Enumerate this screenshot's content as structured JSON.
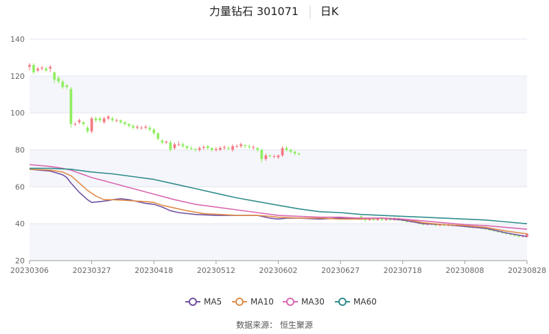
{
  "header": {
    "title_name": "力量钻石 301071",
    "title_period": "日K"
  },
  "footer": {
    "source": "数据来源： 恒生聚源"
  },
  "chart_data": {
    "type": "candlestick",
    "y_range": [
      20,
      140
    ],
    "y_ticks": [
      20,
      40,
      60,
      80,
      100,
      120,
      140
    ],
    "x_tick_labels": [
      "20230306",
      "20230327",
      "20230418",
      "20230512",
      "20230602",
      "20230627",
      "20230718",
      "20230808",
      "20230828"
    ],
    "x_tick_index": [
      0,
      15,
      30,
      45,
      60,
      75,
      90,
      105,
      120
    ],
    "grid": true,
    "legend_position": "bottom",
    "colors": {
      "up": "#f47983",
      "down": "#90ee61",
      "MA5": "#6e4fa1",
      "MA10": "#e08b46",
      "MA30": "#d966b0",
      "MA60": "#2e8b8b"
    },
    "candles": [
      [
        0,
        125,
        126,
        127,
        123
      ],
      [
        1,
        126,
        122,
        127,
        121
      ],
      [
        2,
        123,
        124,
        125,
        122
      ],
      [
        3,
        124,
        124.5,
        125.5,
        123
      ],
      [
        4,
        124,
        123,
        125,
        122
      ],
      [
        5,
        124,
        125,
        126,
        122
      ],
      [
        6,
        122,
        118,
        122.5,
        116
      ],
      [
        7,
        119,
        117,
        120,
        116
      ],
      [
        8,
        117,
        114,
        118,
        113
      ],
      [
        9,
        115,
        114,
        115.5,
        113
      ],
      [
        10,
        113,
        94,
        114,
        92
      ],
      [
        11,
        94,
        94,
        95,
        93
      ],
      [
        12,
        95,
        96,
        97,
        94
      ],
      [
        13,
        95,
        94,
        95.5,
        93
      ],
      [
        14,
        92,
        90,
        93,
        89
      ],
      [
        15,
        90,
        97,
        98,
        89
      ],
      [
        16,
        97,
        96,
        98,
        95
      ],
      [
        17,
        97,
        96,
        98,
        95
      ],
      [
        18,
        95,
        97,
        98,
        94
      ],
      [
        19,
        97,
        98,
        99,
        96
      ],
      [
        20,
        97,
        96,
        98,
        95
      ],
      [
        21,
        96,
        96,
        97,
        95
      ],
      [
        22,
        96,
        95,
        96.5,
        94
      ],
      [
        23,
        95,
        94,
        95.5,
        93
      ],
      [
        24,
        94,
        93,
        94.5,
        92
      ],
      [
        25,
        93,
        92,
        94,
        91
      ],
      [
        26,
        92,
        92.5,
        93.5,
        91
      ],
      [
        27,
        92,
        92,
        93,
        91
      ],
      [
        28,
        92,
        92.5,
        93.5,
        91
      ],
      [
        29,
        92,
        91,
        93,
        90
      ],
      [
        30,
        91,
        89,
        92,
        88
      ],
      [
        31,
        89,
        86,
        89.5,
        85
      ],
      [
        32,
        85,
        84,
        86,
        83
      ],
      [
        33,
        84,
        84.5,
        85,
        83
      ],
      [
        34,
        84,
        80,
        85,
        79
      ],
      [
        35,
        81,
        83,
        84,
        80
      ],
      [
        36,
        83,
        83,
        84.5,
        82
      ],
      [
        37,
        83,
        82,
        84,
        81
      ],
      [
        38,
        82,
        81,
        82.5,
        80
      ],
      [
        39,
        81,
        80.5,
        82,
        80
      ],
      [
        40,
        80.5,
        80,
        81,
        79
      ],
      [
        41,
        80,
        81,
        82,
        79
      ],
      [
        42,
        81,
        81.5,
        82.5,
        80
      ],
      [
        43,
        82,
        81,
        82.5,
        80
      ],
      [
        44,
        81,
        80,
        81.5,
        79
      ],
      [
        45,
        80,
        80.5,
        81.5,
        79
      ],
      [
        46,
        80,
        81,
        82,
        79.5
      ],
      [
        47,
        81,
        81.5,
        82.5,
        80
      ],
      [
        48,
        81,
        80.5,
        82,
        80
      ],
      [
        49,
        80,
        82,
        83,
        79
      ],
      [
        50,
        82,
        82,
        83,
        81
      ],
      [
        51,
        82,
        83,
        84,
        81
      ],
      [
        52,
        82.5,
        82,
        83,
        81
      ],
      [
        53,
        82,
        81.5,
        83,
        80.5
      ],
      [
        54,
        81,
        81.5,
        82.5,
        80
      ],
      [
        55,
        81,
        80,
        81.5,
        79
      ],
      [
        56,
        80,
        75,
        80.5,
        73
      ],
      [
        57,
        75,
        77,
        78,
        74
      ],
      [
        58,
        77,
        76.5,
        77.5,
        76
      ],
      [
        59,
        76.5,
        76.5,
        77.5,
        75.5
      ],
      [
        60,
        76,
        77,
        77.5,
        75
      ],
      [
        61,
        77,
        81,
        82,
        76
      ],
      [
        62,
        81,
        80,
        82,
        79
      ],
      [
        63,
        80,
        79,
        80.5,
        78
      ],
      [
        64,
        79,
        78,
        79.5,
        77
      ],
      [
        65,
        78,
        77.5,
        78.5,
        77
      ],
      [
        80,
        44,
        43,
        44.5,
        42
      ],
      [
        81,
        43,
        42,
        43.5,
        41
      ],
      [
        82,
        42,
        43,
        43.5,
        41.5
      ],
      [
        83,
        43,
        42,
        43.5,
        41.5
      ],
      [
        84,
        42,
        43,
        43.5,
        41.5
      ],
      [
        85,
        43,
        42,
        43.5,
        41.5
      ],
      [
        86,
        42,
        43,
        43.5,
        41.5
      ],
      [
        87,
        43,
        42,
        43.5,
        41.5
      ],
      [
        88,
        42,
        43,
        43.5,
        41.5
      ],
      [
        89,
        43,
        42,
        43.5,
        41.5
      ],
      [
        90,
        42,
        41.5,
        42.5,
        41
      ],
      [
        91,
        41.5,
        41,
        42,
        40.5
      ],
      [
        92,
        41,
        41.5,
        42,
        40.5
      ],
      [
        93,
        41.5,
        41,
        42,
        40.5
      ],
      [
        94,
        41,
        40,
        41.5,
        39.5
      ],
      [
        95,
        40,
        39.5,
        40.5,
        39
      ],
      [
        96,
        39.5,
        40,
        40.5,
        39
      ],
      [
        97,
        40,
        39.5,
        40.5,
        39
      ],
      [
        98,
        39.5,
        39,
        40,
        38.5
      ],
      [
        99,
        39,
        39.5,
        40,
        38.5
      ],
      [
        100,
        39.5,
        39,
        40,
        38.5
      ],
      [
        101,
        39,
        39.5,
        40,
        38.5
      ],
      [
        102,
        39.5,
        39,
        40,
        38.5
      ],
      [
        103,
        39,
        39.5,
        40,
        38.5
      ],
      [
        104,
        39.5,
        39,
        40,
        38.5
      ],
      [
        105,
        39,
        38.5,
        39.5,
        38
      ],
      [
        106,
        38.5,
        38,
        39,
        37.5
      ],
      [
        107,
        38,
        38.5,
        39,
        37.5
      ],
      [
        108,
        38.5,
        38,
        39,
        37.5
      ],
      [
        109,
        38,
        37.5,
        38.5,
        37
      ],
      [
        110,
        37.5,
        37,
        38,
        36.5
      ],
      [
        111,
        37,
        36.5,
        37.5,
        36
      ],
      [
        112,
        36.5,
        36,
        37,
        35.5
      ],
      [
        113,
        36,
        35.5,
        36.5,
        35
      ],
      [
        114,
        35.5,
        35,
        36,
        34.5
      ],
      [
        115,
        35,
        34.5,
        35.5,
        34
      ],
      [
        116,
        34.5,
        34,
        35,
        33.5
      ],
      [
        117,
        34,
        33.5,
        34.5,
        33
      ],
      [
        118,
        33.5,
        33,
        34,
        32.5
      ],
      [
        119,
        33,
        33.5,
        34,
        32.5
      ],
      [
        120,
        33,
        34.5,
        35,
        32.5
      ]
    ],
    "series": [
      {
        "name": "MA5",
        "points": [
          [
            0,
            69.5
          ],
          [
            5,
            68.5
          ],
          [
            8,
            66.5
          ],
          [
            9,
            65
          ],
          [
            10,
            62
          ],
          [
            12,
            57
          ],
          [
            14,
            53
          ],
          [
            15,
            51.5
          ],
          [
            17,
            52
          ],
          [
            19,
            52.5
          ],
          [
            20,
            53
          ],
          [
            22,
            53.5
          ],
          [
            24,
            53
          ],
          [
            26,
            52
          ],
          [
            28,
            51
          ],
          [
            30,
            50.5
          ],
          [
            32,
            49
          ],
          [
            34,
            47
          ],
          [
            36,
            46
          ],
          [
            40,
            45
          ],
          [
            45,
            44.5
          ],
          [
            50,
            44.5
          ],
          [
            55,
            44.5
          ],
          [
            58,
            43
          ],
          [
            60,
            42.5
          ],
          [
            62,
            43
          ],
          [
            65,
            43
          ],
          [
            70,
            42.5
          ],
          [
            75,
            43
          ],
          [
            80,
            42.5
          ],
          [
            85,
            43
          ],
          [
            90,
            42
          ],
          [
            95,
            40
          ],
          [
            100,
            39.5
          ],
          [
            105,
            38.5
          ],
          [
            110,
            37.5
          ],
          [
            115,
            35
          ],
          [
            120,
            33
          ]
        ]
      },
      {
        "name": "MA10",
        "points": [
          [
            0,
            69.5
          ],
          [
            5,
            69
          ],
          [
            8,
            68
          ],
          [
            10,
            66
          ],
          [
            12,
            62
          ],
          [
            14,
            58
          ],
          [
            16,
            55
          ],
          [
            18,
            53
          ],
          [
            20,
            53
          ],
          [
            24,
            52.5
          ],
          [
            28,
            52
          ],
          [
            30,
            51.5
          ],
          [
            32,
            50
          ],
          [
            35,
            48.5
          ],
          [
            38,
            47
          ],
          [
            42,
            45.5
          ],
          [
            46,
            45
          ],
          [
            50,
            44.5
          ],
          [
            55,
            44.5
          ],
          [
            58,
            44
          ],
          [
            60,
            43.5
          ],
          [
            65,
            43
          ],
          [
            70,
            43
          ],
          [
            75,
            42.5
          ],
          [
            80,
            42.5
          ],
          [
            85,
            43
          ],
          [
            90,
            42.5
          ],
          [
            95,
            40.5
          ],
          [
            100,
            39.5
          ],
          [
            105,
            39
          ],
          [
            110,
            38
          ],
          [
            115,
            36
          ],
          [
            120,
            34.5
          ]
        ]
      },
      {
        "name": "MA30",
        "points": [
          [
            0,
            72
          ],
          [
            5,
            71
          ],
          [
            8,
            70
          ],
          [
            10,
            69
          ],
          [
            15,
            65
          ],
          [
            20,
            62
          ],
          [
            25,
            59
          ],
          [
            30,
            56
          ],
          [
            35,
            53
          ],
          [
            40,
            50.5
          ],
          [
            45,
            49
          ],
          [
            50,
            47.5
          ],
          [
            55,
            46
          ],
          [
            60,
            44.5
          ],
          [
            65,
            44
          ],
          [
            70,
            43.5
          ],
          [
            75,
            43.5
          ],
          [
            80,
            43
          ],
          [
            85,
            43
          ],
          [
            90,
            42.5
          ],
          [
            95,
            41.5
          ],
          [
            100,
            40.5
          ],
          [
            105,
            39.5
          ],
          [
            110,
            39
          ],
          [
            115,
            38
          ],
          [
            120,
            37
          ]
        ]
      },
      {
        "name": "MA60",
        "points": [
          [
            0,
            70
          ],
          [
            5,
            70
          ],
          [
            10,
            69.5
          ],
          [
            15,
            68
          ],
          [
            20,
            67
          ],
          [
            25,
            65.5
          ],
          [
            30,
            64
          ],
          [
            35,
            61.5
          ],
          [
            40,
            59
          ],
          [
            45,
            56.5
          ],
          [
            50,
            54
          ],
          [
            55,
            52
          ],
          [
            60,
            50
          ],
          [
            65,
            48
          ],
          [
            70,
            46.5
          ],
          [
            75,
            46
          ],
          [
            80,
            45
          ],
          [
            85,
            44.5
          ],
          [
            90,
            44
          ],
          [
            95,
            43.5
          ],
          [
            100,
            43
          ],
          [
            105,
            42.5
          ],
          [
            110,
            42
          ],
          [
            115,
            41
          ],
          [
            120,
            40
          ]
        ]
      }
    ]
  }
}
